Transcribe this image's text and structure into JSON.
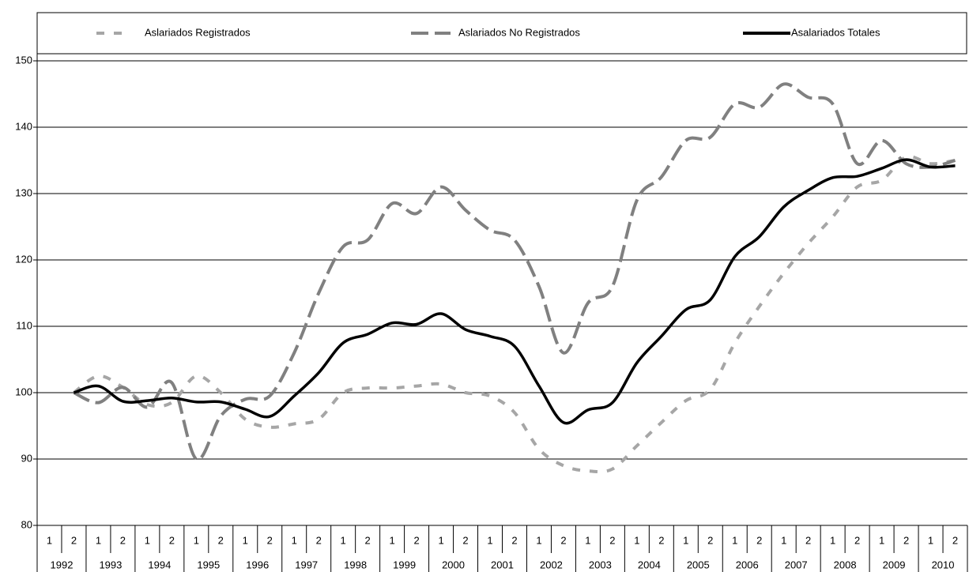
{
  "chart_data": {
    "type": "line",
    "categories": [
      "1",
      "2",
      "1",
      "2",
      "1",
      "2",
      "1",
      "2",
      "1",
      "2",
      "1",
      "2",
      "1",
      "2",
      "1",
      "2",
      "1",
      "2",
      "1",
      "2",
      "1",
      "2",
      "1",
      "2",
      "1",
      "2",
      "1",
      "2",
      "1",
      "2",
      "1",
      "2",
      "1",
      "2",
      "1",
      "2",
      "1",
      "2"
    ],
    "year_labels": [
      "1992",
      "1993",
      "1994",
      "1995",
      "1996",
      "1997",
      "1998",
      "1999",
      "2000",
      "2001",
      "2002",
      "2003",
      "2004",
      "2005",
      "2006",
      "2007",
      "2008",
      "2009",
      "2010"
    ],
    "series": [
      {
        "name": "Aslariados Registrados",
        "color": "#a6a6a6",
        "dash": "10,12",
        "values": [
          null,
          100,
          102.5,
          100.8,
          98.2,
          98.5,
          102.5,
          100,
          96,
          94.8,
          95.3,
          96,
          100,
          100.7,
          100.7,
          101,
          101.3,
          100,
          99.5,
          97,
          91.5,
          89,
          88.2,
          88.5,
          92,
          95.5,
          98.8,
          100.5,
          107.5,
          113,
          118,
          122.5,
          126.5,
          131,
          132,
          135.5,
          134.5,
          135
        ]
      },
      {
        "name": "Aslariados No Registrados",
        "color": "#808080",
        "dash": "22,8",
        "values": [
          null,
          100,
          98.5,
          100.8,
          97.8,
          101.5,
          90,
          96.5,
          99,
          99.5,
          106,
          115,
          122,
          123,
          128.5,
          127,
          131,
          127.5,
          124.5,
          123,
          116,
          106,
          113.5,
          116,
          129,
          132.5,
          138,
          138.5,
          143.5,
          143,
          146.5,
          144.5,
          143.5,
          134.5,
          138,
          134.5,
          134,
          135
        ]
      },
      {
        "name": "Asalariados Totales",
        "color": "#000000",
        "dash": "none",
        "values": [
          null,
          100,
          101,
          98.7,
          98.8,
          99.2,
          98.6,
          98.6,
          97.5,
          96.4,
          99.5,
          103,
          107.5,
          108.8,
          110.5,
          110.3,
          111.9,
          109.5,
          108.5,
          107,
          101,
          95.5,
          97.4,
          98.5,
          104.5,
          108.5,
          112.5,
          114,
          120.5,
          123.5,
          128,
          130.5,
          132.4,
          132.6,
          133.8,
          135.1,
          134,
          134.2
        ]
      }
    ],
    "ylim": [
      80,
      150
    ],
    "yticks": [
      80,
      90,
      100,
      110,
      120,
      130,
      140,
      150
    ],
    "grid": true,
    "legend": "top"
  }
}
